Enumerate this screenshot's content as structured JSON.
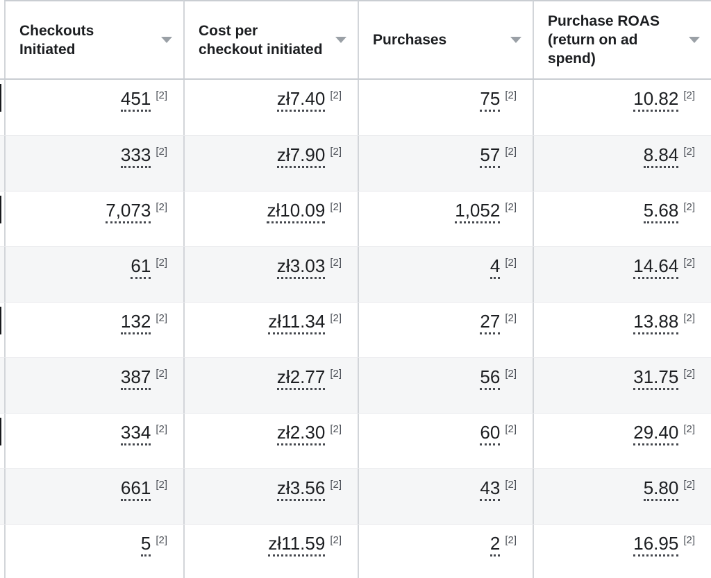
{
  "table": {
    "columns": [
      {
        "key": "checkouts-initiated",
        "label": "Checkouts Initiated",
        "sort_icon": "chevron-down"
      },
      {
        "key": "cost-per-checkout-initiated",
        "label": "Cost per checkout initiated",
        "sort_icon": "chevron-down"
      },
      {
        "key": "purchases",
        "label": "Purchases",
        "sort_icon": "chevron-down"
      },
      {
        "key": "purchase-roas",
        "label": "Purchase ROAS (return on ad spend)",
        "sort_icon": "chevron-down"
      }
    ],
    "footnote_marker": "[2]",
    "rows": [
      [
        "451",
        "zł7.40",
        "75",
        "10.82"
      ],
      [
        "333",
        "zł7.90",
        "57",
        "8.84"
      ],
      [
        "7,073",
        "zł10.09",
        "1,052",
        "5.68"
      ],
      [
        "61",
        "zł3.03",
        "4",
        "14.64"
      ],
      [
        "132",
        "zł11.34",
        "27",
        "13.88"
      ],
      [
        "387",
        "zł2.77",
        "56",
        "31.75"
      ],
      [
        "334",
        "zł2.30",
        "60",
        "29.40"
      ],
      [
        "661",
        "zł3.56",
        "43",
        "5.80"
      ],
      [
        "5",
        "zł11.59",
        "2",
        "16.95"
      ]
    ],
    "colors": {
      "text": "#1c1e21",
      "footnote": "#4b4f56",
      "row_stripe": "#f5f6f7",
      "grid_line": "#d2d5d9",
      "header_rule": "#c9cdd2",
      "row_rule": "#e7e8eb",
      "sort_icon": "#9aa0a6",
      "underline_dots": "#45484e"
    }
  }
}
